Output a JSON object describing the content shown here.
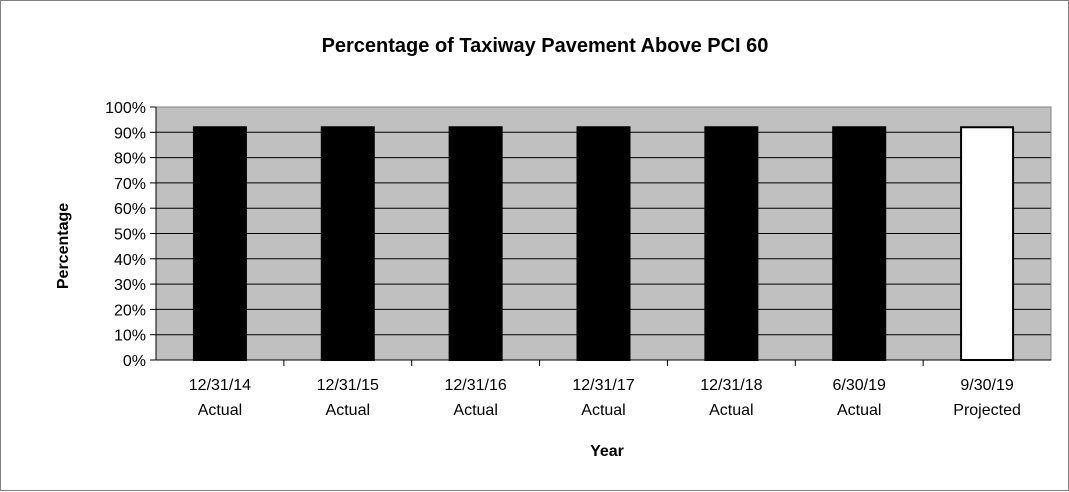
{
  "chart_data": {
    "type": "bar",
    "title": "Percentage of Taxiway Pavement Above PCI 60",
    "xlabel": "Year",
    "ylabel": "Percentage",
    "categories": [
      [
        "12/31/14",
        "Actual"
      ],
      [
        "12/31/15",
        "Actual"
      ],
      [
        "12/31/16",
        "Actual"
      ],
      [
        "12/31/17",
        "Actual"
      ],
      [
        "12/31/18",
        "Actual"
      ],
      [
        "6/30/19",
        "Actual"
      ],
      [
        "9/30/19",
        "Projected"
      ]
    ],
    "values": [
      92,
      92,
      92,
      92,
      92,
      92,
      92
    ],
    "ylim": [
      0,
      100
    ],
    "yticks": [
      "0%",
      "10%",
      "20%",
      "30%",
      "40%",
      "50%",
      "60%",
      "70%",
      "80%",
      "90%",
      "100%"
    ],
    "grid": true,
    "legend": "none",
    "colors": {
      "plot_background": "#c0c0c0",
      "actual_bar": "#000000",
      "projected_bar": "#ffffff",
      "gridline": "#000000"
    }
  }
}
